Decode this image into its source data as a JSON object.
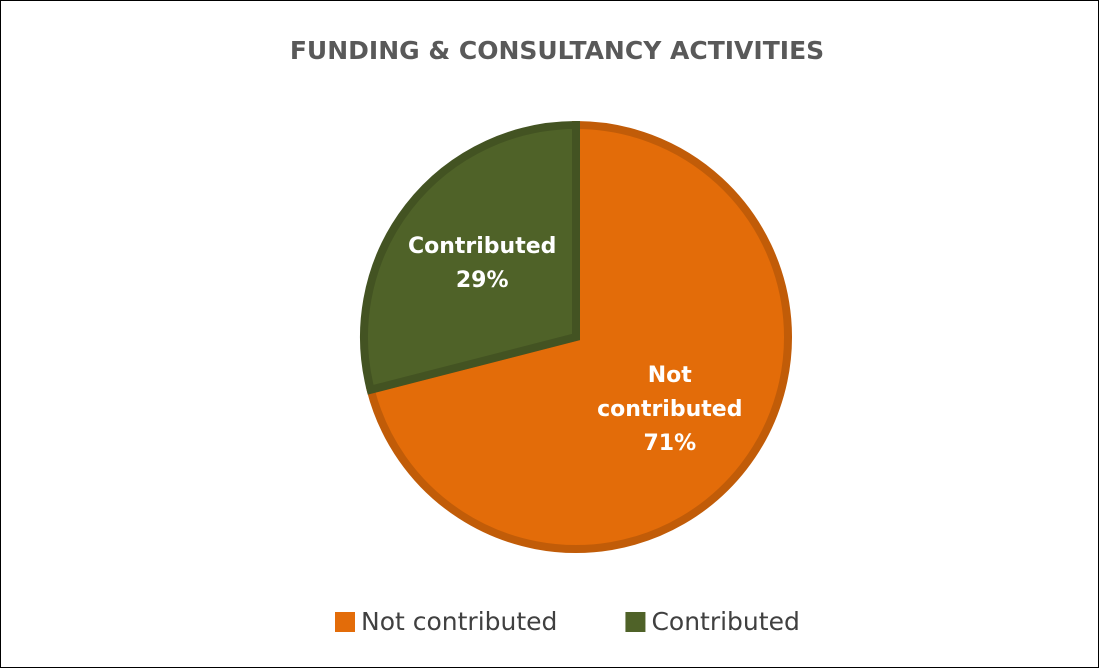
{
  "chart_data": {
    "type": "pie",
    "title": "FUNDING & CONSULTANCY ACTIVITIES",
    "categories": [
      "Not contributed",
      "Contributed"
    ],
    "values": [
      71,
      29
    ],
    "value_labels": [
      "71%",
      "29%"
    ],
    "colors": [
      "#e36c09",
      "#4f6228"
    ],
    "legend": "bottom"
  }
}
